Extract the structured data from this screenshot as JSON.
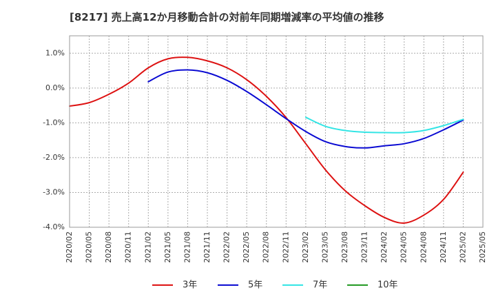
{
  "chart_data": {
    "type": "line",
    "title": "[8217]  売上高12か月移動合計の対前年同期増減率の平均値の推移",
    "xlabel": "",
    "ylabel": "",
    "x_ticks": [
      "2020/02",
      "2020/05",
      "2020/08",
      "2020/11",
      "2021/02",
      "2021/05",
      "2021/08",
      "2021/11",
      "2022/02",
      "2022/05",
      "2022/08",
      "2022/11",
      "2023/02",
      "2023/05",
      "2023/08",
      "2023/11",
      "2024/02",
      "2024/05",
      "2024/08",
      "2024/11",
      "2025/02",
      "2025/05"
    ],
    "y_ticks": [
      "1.0%",
      "0.0%",
      "-1.0%",
      "-2.0%",
      "-3.0%",
      "-4.0%"
    ],
    "ylim": [
      -4.0,
      1.5
    ],
    "grid": true,
    "legend_position": "bottom",
    "series": [
      {
        "name": "3年",
        "color": "#dd1111",
        "points": [
          [
            "2020/02",
            -0.52
          ],
          [
            "2020/05",
            -0.42
          ],
          [
            "2020/08",
            -0.18
          ],
          [
            "2020/11",
            0.14
          ],
          [
            "2021/02",
            0.58
          ],
          [
            "2021/05",
            0.84
          ],
          [
            "2021/08",
            0.88
          ],
          [
            "2021/11",
            0.78
          ],
          [
            "2022/02",
            0.58
          ],
          [
            "2022/05",
            0.24
          ],
          [
            "2022/08",
            -0.24
          ],
          [
            "2022/11",
            -0.85
          ],
          [
            "2023/02",
            -1.6
          ],
          [
            "2023/05",
            -2.35
          ],
          [
            "2023/08",
            -2.95
          ],
          [
            "2023/11",
            -3.38
          ],
          [
            "2024/02",
            -3.72
          ],
          [
            "2024/05",
            -3.88
          ],
          [
            "2024/08",
            -3.65
          ],
          [
            "2024/11",
            -3.2
          ],
          [
            "2025/02",
            -2.42
          ]
        ]
      },
      {
        "name": "5年",
        "color": "#0a0ad2",
        "points": [
          [
            "2021/02",
            0.18
          ],
          [
            "2021/05",
            0.46
          ],
          [
            "2021/08",
            0.52
          ],
          [
            "2021/11",
            0.44
          ],
          [
            "2022/02",
            0.22
          ],
          [
            "2022/05",
            -0.1
          ],
          [
            "2022/08",
            -0.48
          ],
          [
            "2022/11",
            -0.88
          ],
          [
            "2023/02",
            -1.25
          ],
          [
            "2023/05",
            -1.54
          ],
          [
            "2023/08",
            -1.68
          ],
          [
            "2023/11",
            -1.72
          ],
          [
            "2024/02",
            -1.66
          ],
          [
            "2024/05",
            -1.6
          ],
          [
            "2024/08",
            -1.45
          ],
          [
            "2024/11",
            -1.2
          ],
          [
            "2025/02",
            -0.92
          ]
        ]
      },
      {
        "name": "7年",
        "color": "#33e5e5",
        "points": [
          [
            "2023/02",
            -0.84
          ],
          [
            "2023/05",
            -1.1
          ],
          [
            "2023/08",
            -1.22
          ],
          [
            "2023/11",
            -1.27
          ],
          [
            "2024/02",
            -1.28
          ],
          [
            "2024/05",
            -1.28
          ],
          [
            "2024/08",
            -1.22
          ],
          [
            "2024/11",
            -1.08
          ],
          [
            "2025/02",
            -0.9
          ]
        ]
      },
      {
        "name": "10年",
        "color": "#229922",
        "points": []
      }
    ]
  }
}
